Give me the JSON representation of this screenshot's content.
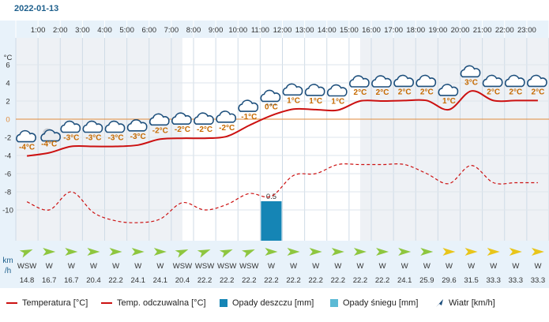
{
  "date": "2022-01-13",
  "chart_data": {
    "type": "line",
    "x": [
      "1:00",
      "2:00",
      "3:00",
      "4:00",
      "5:00",
      "6:00",
      "7:00",
      "8:00",
      "9:00",
      "10:00",
      "11:00",
      "12:00",
      "13:00",
      "14:00",
      "15:00",
      "16:00",
      "17:00",
      "18:00",
      "19:00",
      "20:00",
      "21:00",
      "22:00",
      "23:00"
    ],
    "y_axis_unit": "°C",
    "y_ticks": [
      6,
      4,
      2,
      0,
      -2,
      -4,
      -6,
      -8,
      -10
    ],
    "ylim": [
      -12,
      8
    ],
    "slots": 24,
    "hours": [
      0,
      1,
      2,
      3,
      4,
      5,
      6,
      7,
      8,
      9,
      10,
      11,
      12,
      13,
      14,
      15,
      16,
      17,
      18,
      19,
      20,
      21,
      22,
      23
    ],
    "temperature": [
      -4,
      -4,
      -3,
      -3,
      -3,
      -3,
      -2,
      -2,
      -2,
      -2,
      -1,
      0,
      1,
      1,
      1,
      2,
      2,
      2,
      2,
      1,
      3,
      2,
      2,
      2
    ],
    "temperature_labels": [
      "-4°C",
      "-4°C",
      "-3°C",
      "-3°C",
      "-3°C",
      "-3°C",
      "-2°C",
      "-2°C",
      "-2°C",
      "-2°C",
      "-1°C",
      "0°C",
      "1°C",
      "1°C",
      "1°C",
      "2°C",
      "2°C",
      "2°C",
      "2°C",
      "1°C",
      "3°C",
      "2°C",
      "2°C",
      "2°C"
    ],
    "temperature_curve": [
      -4.05,
      -3.7,
      -3.0,
      -3.0,
      -3.0,
      -2.85,
      -2.2,
      -2.1,
      -2.1,
      -1.9,
      -0.7,
      0.4,
      1.1,
      1.05,
      1.0,
      2.0,
      2.0,
      2.05,
      2.05,
      1.05,
      3.1,
      2.05,
      2.05,
      2.05
    ],
    "feels_like": [
      -9.1,
      -10.0,
      -8.0,
      -10.3,
      -11.2,
      -11.4,
      -11.0,
      -9.2,
      -10.0,
      -9.4,
      -8.2,
      -8.5,
      -6.2,
      -6.0,
      -5.0,
      -5.0,
      -5.0,
      -5.0,
      -6.0,
      -7.1,
      -5.1,
      -7.0,
      -7.0,
      -7.0
    ],
    "rain": [
      0,
      0,
      0,
      0,
      0,
      0,
      0,
      0,
      0,
      0,
      0,
      0.5,
      0,
      0,
      0,
      0,
      0,
      0,
      0,
      0,
      0,
      0,
      0,
      0
    ],
    "rain_label": "0.5",
    "snow": [
      0,
      0,
      0,
      0,
      0,
      0,
      0,
      0,
      0,
      0,
      0,
      0,
      0,
      0,
      0,
      0,
      0,
      0,
      0,
      0,
      0,
      0,
      0,
      0
    ],
    "wind_unit": "km/h",
    "wind_dir": [
      "WSW",
      "W",
      "W",
      "W",
      "W",
      "W",
      "W",
      "WSW",
      "WSW",
      "WSW",
      "WSW",
      "W",
      "W",
      "W",
      "W",
      "W",
      "W",
      "W",
      "W",
      "W",
      "W",
      "W",
      "W",
      "W"
    ],
    "wind_speed": [
      "14.8",
      "16.7",
      "16.7",
      "20.4",
      "22.2",
      "24.1",
      "24.1",
      "20.4",
      "22.2",
      "22.2",
      "22.2",
      "22.2",
      "22.2",
      "22.2",
      "22.2",
      "22.2",
      "22.2",
      "24.1",
      "25.9",
      "29.6",
      "31.5",
      "33.3",
      "33.3",
      "33.3"
    ],
    "icons": [
      "cloud",
      "night-cloud",
      "cloud",
      "cloud",
      "cloud",
      "cloud",
      "cloud",
      "cloud",
      "cloud",
      "cloud",
      "cloud",
      "cloud-snow",
      "cloud",
      "cloud",
      "cloud",
      "cloud",
      "cloud",
      "cloud",
      "cloud",
      "cloud",
      "cloud",
      "cloud",
      "cloud",
      "cloud"
    ],
    "colors": {
      "temperature": "#cc1111",
      "feels_like": "#cc1111",
      "rain": "#1585b5",
      "snow": "#5bbad5",
      "wind": "#1d4f7c",
      "header_bg": "#e8f2fa",
      "night_bg": "#eef1f5",
      "zero_line": "#e08a3a",
      "temp_label": "#c66a00"
    },
    "legend": {
      "temperature": "Temperatura [°C]",
      "feels_like": "Temp. odczuwalna [°C]",
      "rain": "Opady deszczu [mm]",
      "snow": "Opady śniegu [mm]",
      "wind": "Wiatr [km/h]"
    }
  }
}
